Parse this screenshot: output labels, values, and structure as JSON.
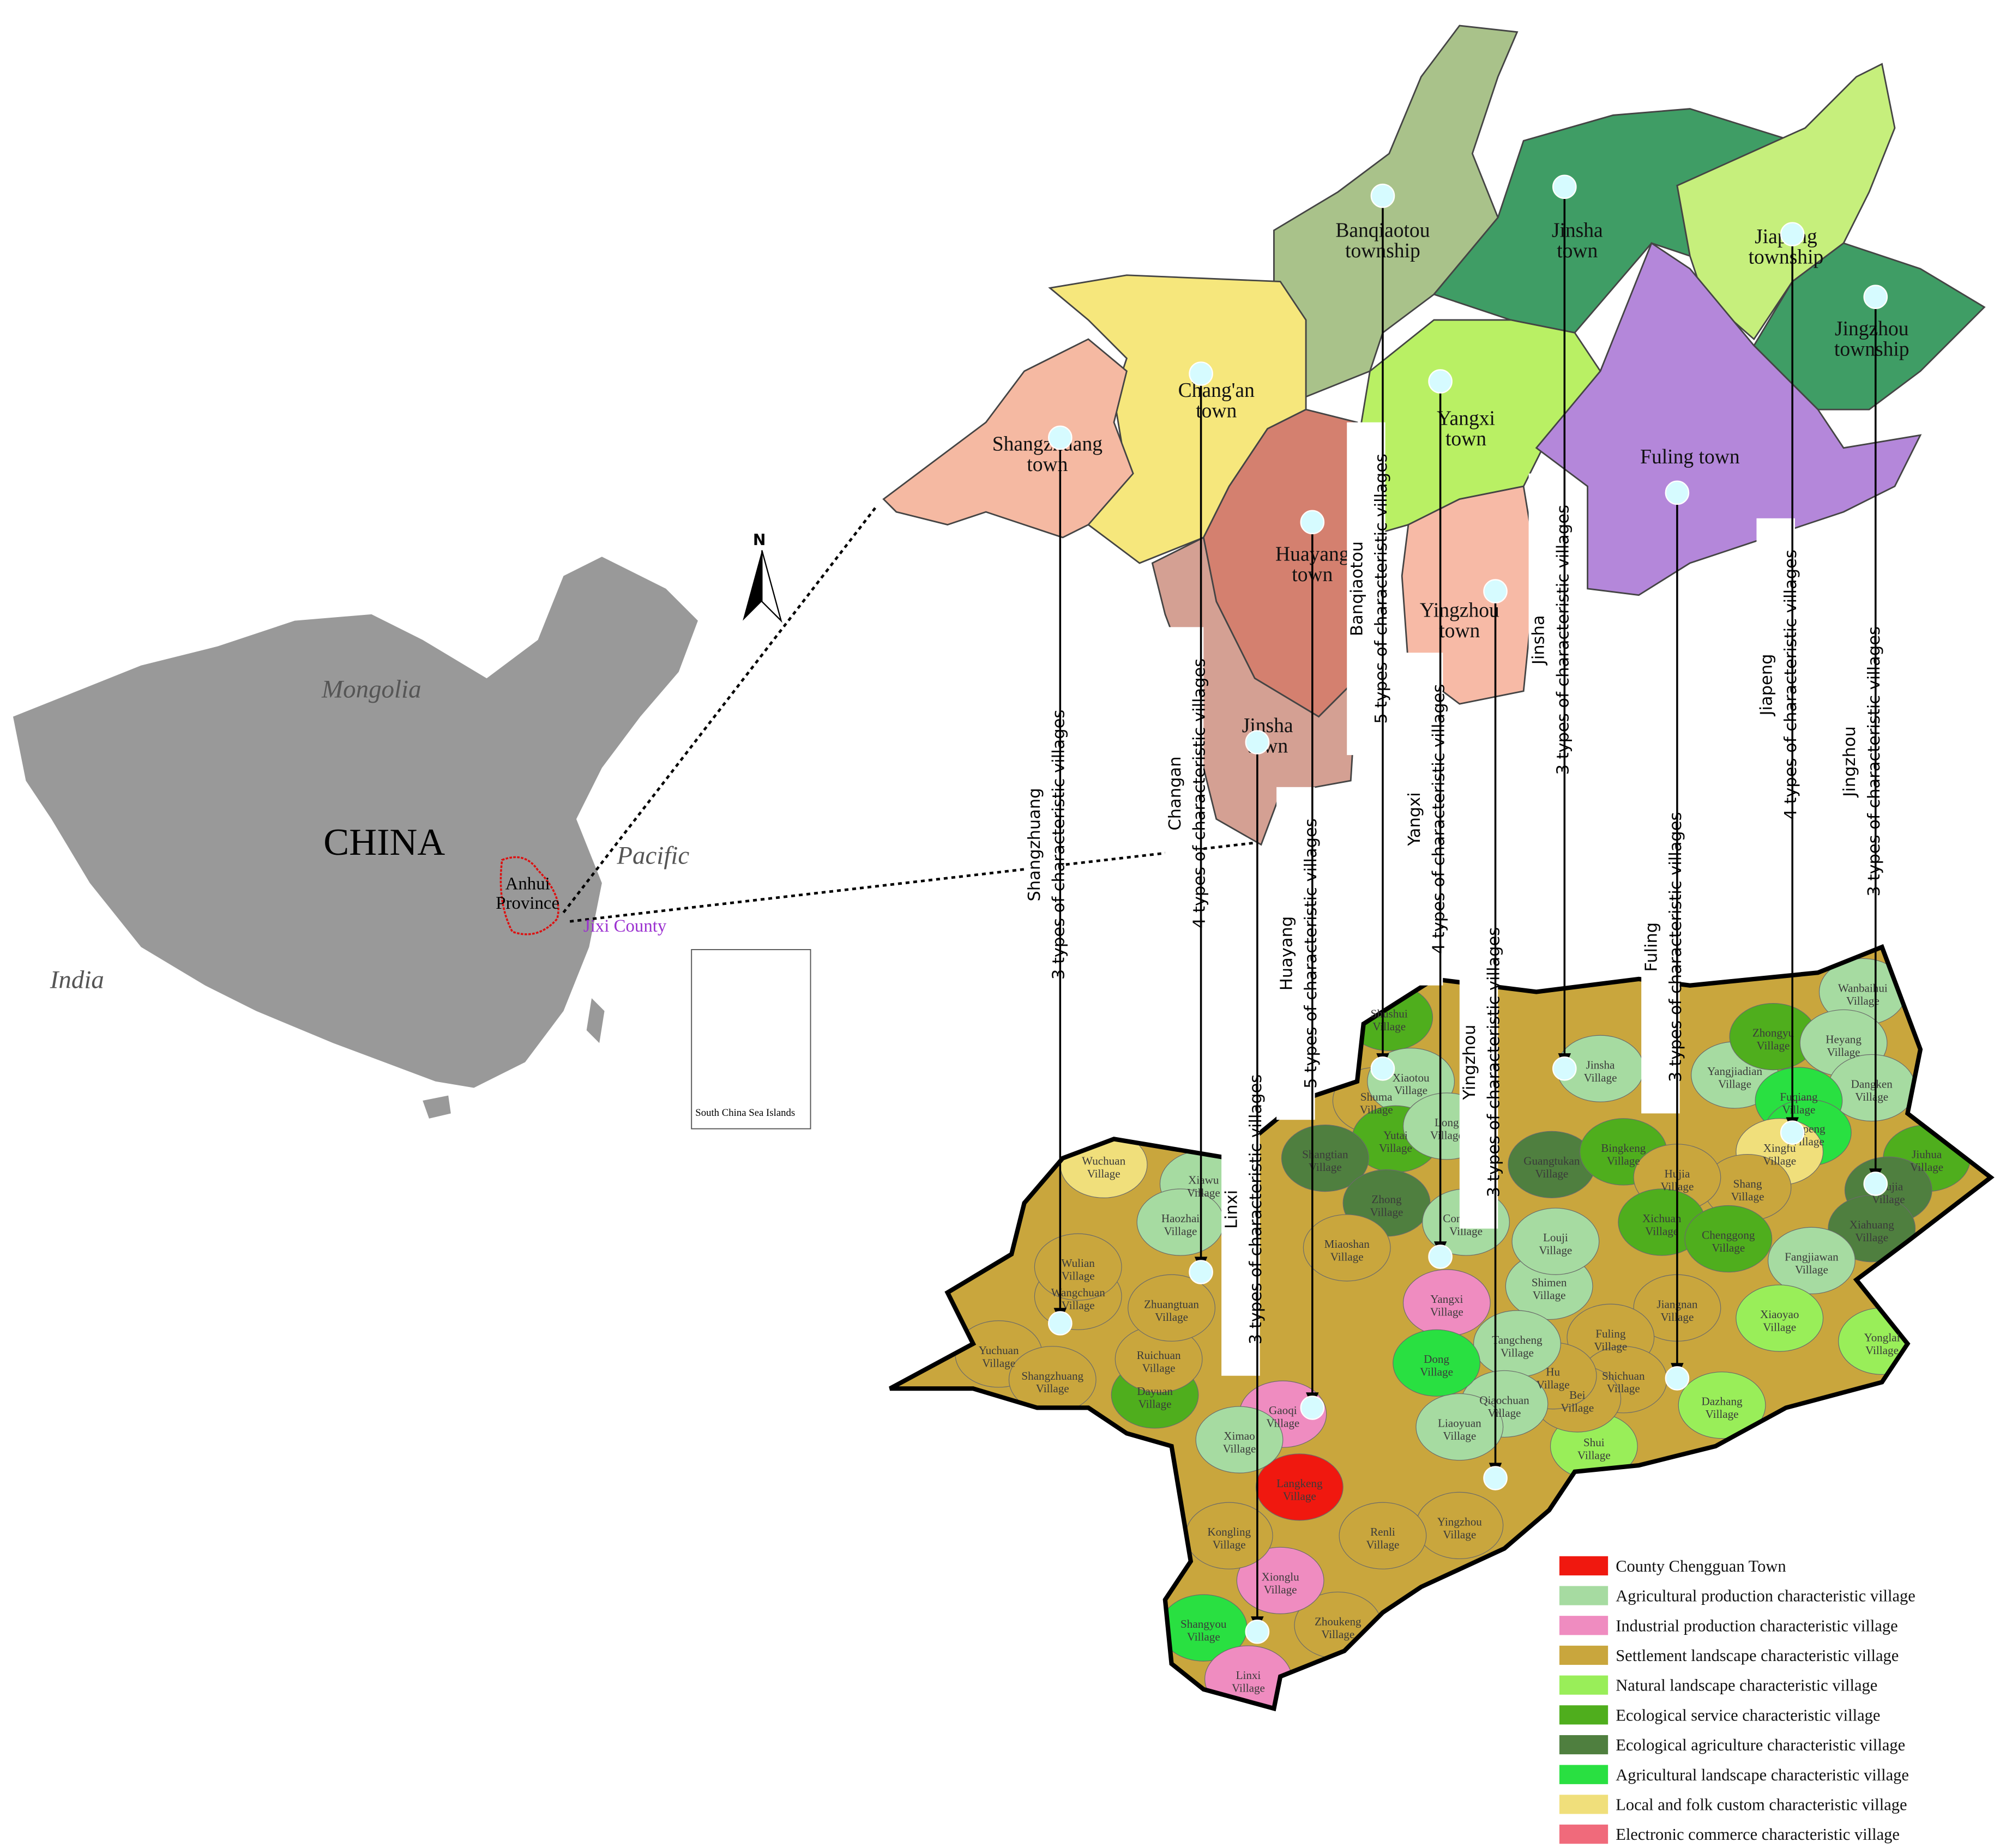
{
  "inset": {
    "mongolia": "Mongolia",
    "china": "CHINA",
    "pacific": "Pacific",
    "india": "India",
    "province": "Anhui Province",
    "county": "Jixi County",
    "islands": "South China Sea Islands",
    "north": "N"
  },
  "towns": [
    {
      "name": "Banqiaotou township",
      "color": "#a9c28a"
    },
    {
      "name": "Jinsha town",
      "color": "#3f9d65"
    },
    {
      "name": "Jiapeng township",
      "color": "#c6ef7c"
    },
    {
      "name": "Jingzhou township",
      "color": "#3f9d65"
    },
    {
      "name": "Chang'an town",
      "color": "#f6e77c"
    },
    {
      "name": "Shangzhuang town",
      "color": "#f5b9a2"
    },
    {
      "name": "Yangxi town",
      "color": "#b9f064"
    },
    {
      "name": "Fuling town",
      "color": "#b487da"
    },
    {
      "name": "Huayang town",
      "color": "#d4806f"
    },
    {
      "name": "Yingzhou town",
      "color": "#f7baa6"
    },
    {
      "name": "Jinsha town",
      "color": "#d4a093"
    }
  ],
  "connectors": [
    {
      "name": "Shangzhuang",
      "text": "3 types of characteristic villages"
    },
    {
      "name": "Changan",
      "text": "4 types of characteristic villages"
    },
    {
      "name": "Linxi",
      "text": "3 types of characteristic villages"
    },
    {
      "name": "Huayang",
      "text": "5 types of characteristic villages"
    },
    {
      "name": "Banqiaotou",
      "text": "5 types of characteristic villages"
    },
    {
      "name": "Yangxi",
      "text": "4 types of characteristic villages"
    },
    {
      "name": "Yingzhou",
      "text": "3 types of characteristic villages"
    },
    {
      "name": "Jinsha",
      "text": "3 types of characteristic villages"
    },
    {
      "name": "Fuling",
      "text": "3 types of characteristic villages"
    },
    {
      "name": "Jiapeng",
      "text": "4 types of characteristic villages"
    },
    {
      "name": "Jingzhou",
      "text": "3 types of characteristic villages"
    }
  ],
  "villages": [
    "Shushui Village",
    "Shuma Village",
    "Xiaotou Village",
    "Yutai Village",
    "Shangtian Village",
    "Zhong Village",
    "Long Village",
    "Jinsha Village",
    "Guangtukan Village",
    "Bingkeng Village",
    "Yangjiadian Village",
    "Zhongyu Village",
    "Wanbaihui Village",
    "Heyang Village",
    "Dangken Village",
    "Fuqiang Village",
    "Jiapeng Village",
    "Xingfu Village",
    "Jiuhua Village",
    "Shujia Village",
    "Xiahuang Village",
    "Fangjiawan Village",
    "Shang Village",
    "Hujia Village",
    "Xichuan Village",
    "Chenggong Village",
    "Xiaoyao Village",
    "Yonglai Village",
    "Jiangnan Village",
    "Fuling Village",
    "Shichuan Village",
    "Dazhang Village",
    "Shui Village",
    "Bei Village",
    "Hu Village",
    "Shimen Village",
    "Louji Village",
    "Tangcheng Village",
    "Qiaochuan Village",
    "Liaoyuan Village",
    "Congshan Village",
    "Yangxi Village",
    "Dong Village",
    "Miaoshan Village",
    "Gaoqi Village",
    "Langkeng Village",
    "Ximao Village",
    "Yingzhou Village",
    "Renli Village",
    "Zhoukeng Village",
    "Xionglu Village",
    "Kongling Village",
    "Shangyou Village",
    "Linxi Village",
    "Dayuan Village",
    "Yuchuan Village",
    "Shangzhuang Village",
    "Ruichuan Village",
    "Wangchuan Village",
    "Wulian Village",
    "Xiawu Village",
    "Haozhai Village",
    "Wuchuan Village",
    "Zhuangtuan Village"
  ],
  "legend": [
    {
      "label": "County Chengguan Town",
      "color": "#f0180f"
    },
    {
      "label": "Agricultural production characteristic village",
      "color": "#a6dba1"
    },
    {
      "label": "Industrial production characteristic village",
      "color": "#ef8cc0"
    },
    {
      "label": "Settlement landscape characteristic village",
      "color": "#c9a63d"
    },
    {
      "label": "Natural landscape characteristic village",
      "color": "#99ee59"
    },
    {
      "label": "Ecological service characteristic village",
      "color": "#4fae1d"
    },
    {
      "label": "Ecological agriculture characteristic village",
      "color": "#4f7f3f"
    },
    {
      "label": "Agricultural landscape characteristic village",
      "color": "#29e041"
    },
    {
      "label": "Local and folk custom characteristic village",
      "color": "#f0df7b"
    },
    {
      "label": "Electronic commerce characteristic village",
      "color": "#f06a7b"
    }
  ]
}
